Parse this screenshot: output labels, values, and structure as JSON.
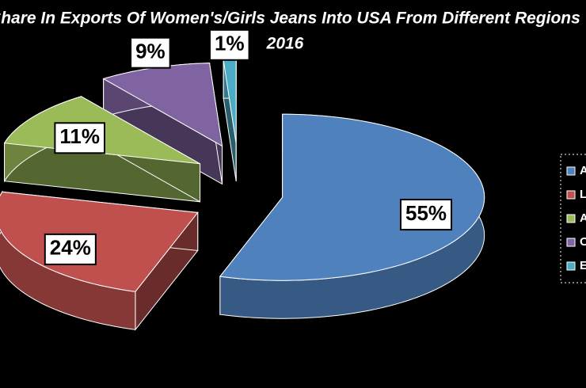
{
  "chart_data": {
    "type": "pie",
    "title": "Share In Exports Of Women's/Girls Jeans Into USA From Different Regions",
    "subtitle": "2016",
    "categories": [
      "A",
      "L",
      "A",
      "O",
      "E"
    ],
    "values": [
      55,
      24,
      11,
      9,
      1
    ],
    "value_labels": [
      "55%",
      "24%",
      "11%",
      "9%",
      "1%"
    ],
    "colors": [
      "#4f81bd",
      "#c0504d",
      "#9bbb59",
      "#8064a2",
      "#4bacc6"
    ],
    "legend": "right"
  }
}
